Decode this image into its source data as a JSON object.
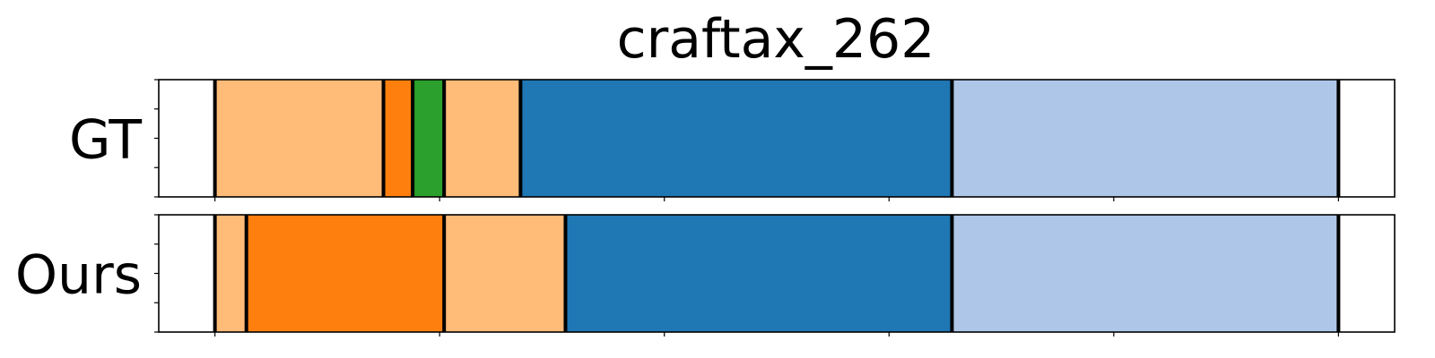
{
  "chart_data": {
    "type": "bar",
    "subtype": "segmentation-timeline",
    "title": "craftax_262",
    "xlim": [
      0,
      550
    ],
    "x_ticks": [
      25,
      125,
      225,
      325,
      425,
      525
    ],
    "x_tick_labels_visible": false,
    "y_ticks_per_row": 5,
    "grid": false,
    "rows": [
      {
        "label": "GT",
        "segments": [
          {
            "start": 25,
            "end": 100,
            "color": "#ffbb78"
          },
          {
            "start": 100,
            "end": 113,
            "color": "#ff7f0e"
          },
          {
            "start": 113,
            "end": 127,
            "color": "#2ca02c"
          },
          {
            "start": 127,
            "end": 161,
            "color": "#ffbb78"
          },
          {
            "start": 161,
            "end": 353,
            "color": "#1f77b4"
          },
          {
            "start": 353,
            "end": 525,
            "color": "#aec7e8"
          }
        ]
      },
      {
        "label": "Ours",
        "segments": [
          {
            "start": 25,
            "end": 39,
            "color": "#ffbb78"
          },
          {
            "start": 39,
            "end": 127,
            "color": "#ff7f0e"
          },
          {
            "start": 127,
            "end": 181,
            "color": "#ffbb78"
          },
          {
            "start": 181,
            "end": 353,
            "color": "#1f77b4"
          },
          {
            "start": 353,
            "end": 525,
            "color": "#aec7e8"
          }
        ]
      }
    ]
  }
}
